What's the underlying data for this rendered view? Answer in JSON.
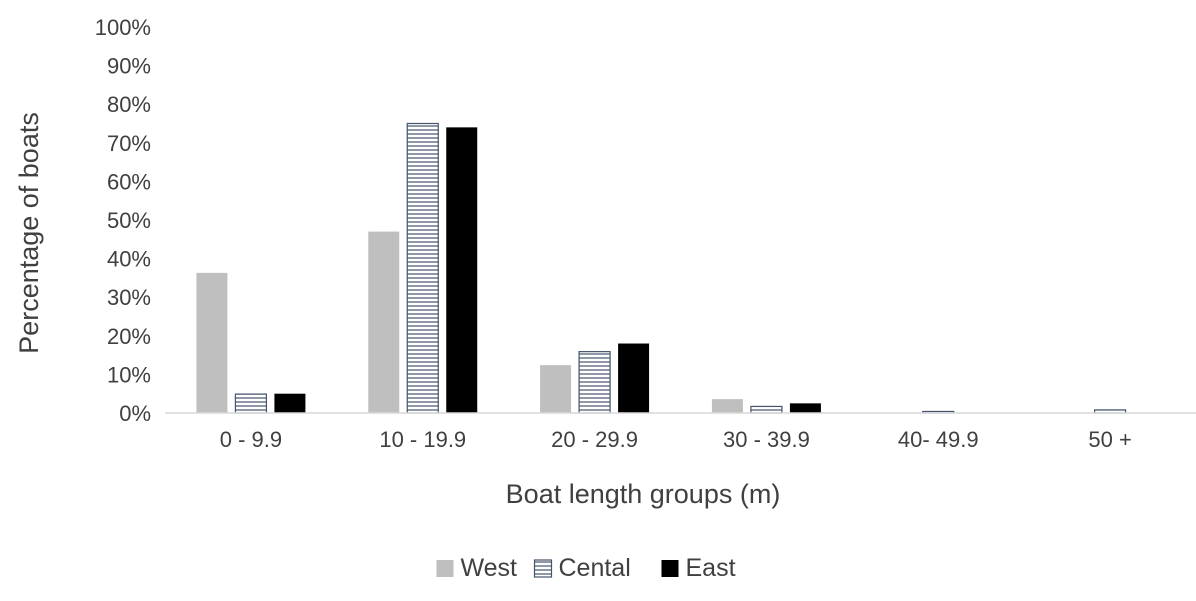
{
  "chart_data": {
    "type": "bar",
    "categories": [
      "0 - 9.9",
      "10 - 19.9",
      "20 - 29.9",
      "30 - 39.9",
      "40- 49.9",
      "50 +"
    ],
    "series": [
      {
        "name": "West",
        "values": [
          36.3,
          47.0,
          12.4,
          3.6,
          0.0,
          0.0
        ],
        "fill": "#bfbfbf",
        "pattern": "solid"
      },
      {
        "name": "Cental",
        "values": [
          4.9,
          75.0,
          15.9,
          1.7,
          0.4,
          0.8
        ],
        "fill": "#ffffff",
        "stroke": "#44546a",
        "pattern": "horizontal-lines"
      },
      {
        "name": "East",
        "values": [
          5.0,
          74.0,
          18.0,
          2.5,
          0.0,
          0.0
        ],
        "fill": "#000000",
        "pattern": "solid"
      }
    ],
    "ylim": [
      0,
      100
    ],
    "ytick_step": 10,
    "ytick_format": "percent",
    "yticks": [
      "0%",
      "10%",
      "20%",
      "30%",
      "40%",
      "50%",
      "60%",
      "70%",
      "80%",
      "90%",
      "100%"
    ],
    "xlabel": "Boat length groups  (m)",
    "ylabel": "Percentage of boats",
    "title": "",
    "grid": false,
    "legend_position": "bottom",
    "colors": {
      "axis": "#d9d9d9",
      "text": "#404040"
    }
  }
}
